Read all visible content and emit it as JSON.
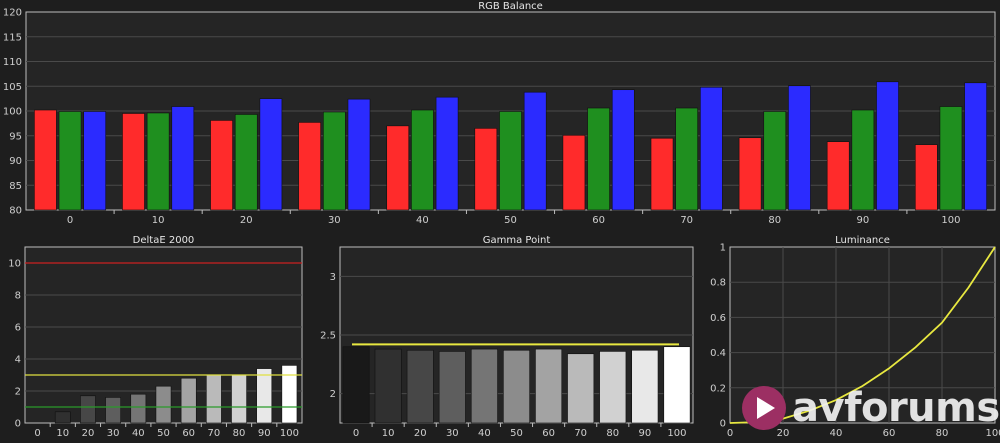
{
  "chart_data": [
    {
      "type": "bar",
      "title": "RGB Balance",
      "categories": [
        "0",
        "10",
        "20",
        "30",
        "40",
        "50",
        "60",
        "70",
        "80",
        "90",
        "100"
      ],
      "series": [
        {
          "color": "#ff2b2b",
          "values": [
            100.2,
            99.5,
            98.1,
            97.7,
            97.0,
            96.5,
            95.1,
            94.5,
            94.6,
            93.8,
            93.2
          ]
        },
        {
          "color": "#1f8f1f",
          "values": [
            99.9,
            99.6,
            99.3,
            99.8,
            100.2,
            99.9,
            100.6,
            100.6,
            99.9,
            100.2,
            100.9
          ]
        },
        {
          "color": "#2b2bff",
          "values": [
            99.9,
            100.9,
            102.5,
            102.4,
            102.8,
            103.8,
            104.3,
            104.8,
            105.1,
            105.9,
            105.7
          ]
        }
      ],
      "ylim": [
        80,
        120
      ],
      "yticks": [
        80,
        85,
        90,
        95,
        100,
        105,
        110,
        115,
        120
      ],
      "grid": true
    },
    {
      "type": "bar",
      "title": "DeltaE 2000",
      "categories": [
        "0",
        "10",
        "20",
        "30",
        "40",
        "50",
        "60",
        "70",
        "80",
        "90",
        "100"
      ],
      "values": [
        0,
        0.7,
        1.7,
        1.6,
        1.8,
        2.3,
        2.8,
        3.0,
        3.0,
        3.4,
        3.6
      ],
      "ylim": [
        0,
        11
      ],
      "yticks": [
        0,
        2,
        4,
        6,
        8,
        10
      ],
      "reference_lines": [
        {
          "value": 10,
          "color": "#cc2222"
        },
        {
          "value": 3,
          "color": "#e0e040"
        },
        {
          "value": 1,
          "color": "#2a9a2a"
        }
      ],
      "grid": true
    },
    {
      "type": "bar",
      "title": "Gamma Point",
      "categories": [
        "0",
        "10",
        "20",
        "30",
        "40",
        "50",
        "60",
        "70",
        "80",
        "90",
        "100"
      ],
      "values": [
        2.4,
        2.38,
        2.37,
        2.36,
        2.38,
        2.37,
        2.38,
        2.34,
        2.36,
        2.37,
        2.4
      ],
      "ylim": [
        1.75,
        3.25
      ],
      "yticks": [
        2,
        2.5,
        3
      ],
      "reference_lines": [
        {
          "value": 2.42,
          "color": "#e8e840"
        }
      ],
      "grid": true
    },
    {
      "type": "line",
      "title": "Luminance",
      "x": [
        0,
        10,
        20,
        30,
        40,
        50,
        60,
        70,
        80,
        90,
        100
      ],
      "series": [
        {
          "color": "#e8e840",
          "values": [
            0,
            0.005,
            0.025,
            0.07,
            0.13,
            0.21,
            0.31,
            0.43,
            0.57,
            0.77,
            1.0
          ]
        }
      ],
      "xlim": [
        0,
        100
      ],
      "ylim": [
        0,
        1
      ],
      "xticks": [
        0,
        20,
        40,
        60,
        80,
        100
      ],
      "yticks": [
        0,
        0.2,
        0.4,
        0.6,
        0.8,
        1
      ],
      "grid": true
    }
  ],
  "watermark": {
    "text": "avforums"
  }
}
